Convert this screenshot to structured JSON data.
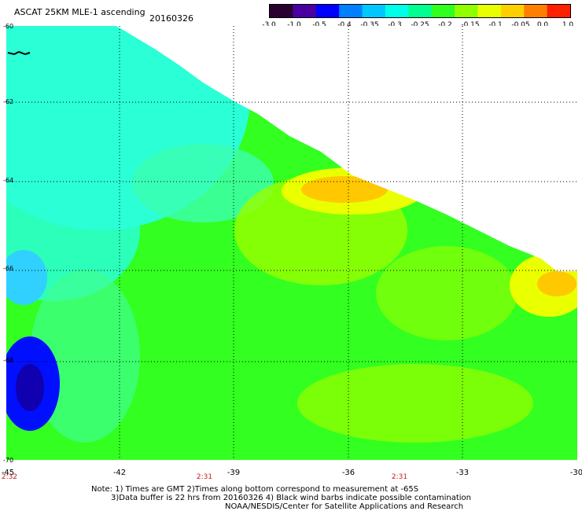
{
  "title": "ASCAT 25KM MLE-1 ascending",
  "date": "20160326",
  "colorbar": {
    "labels": [
      "-3.0",
      "-1.0",
      "-0.5",
      "-0.4",
      "-0.35",
      "-0.3",
      "-0.25",
      "-0.2",
      "-0.15",
      "-0.1",
      "-0.05",
      "0.0",
      "1.0"
    ],
    "colors": [
      "#2a0030",
      "#4a00a0",
      "#0000ff",
      "#0080ff",
      "#00c8ff",
      "#00ffe8",
      "#00ff90",
      "#30ff20",
      "#90ff00",
      "#e8ff00",
      "#ffd000",
      "#ff8000",
      "#ff2000"
    ]
  },
  "map": {
    "lat_labels": [
      "-60",
      "-62",
      "-64",
      "-66",
      "-68",
      "-70"
    ],
    "lon_labels": [
      "-45",
      "-42",
      "-39",
      "-36",
      "-33",
      "-30"
    ],
    "times": [
      "2:32",
      "2:31",
      "2:31"
    ],
    "land_color": "#ffffff",
    "field_colors": {
      "cyan": "#2affd6",
      "green": "#33ff20",
      "lime": "#9aff00",
      "yellow": "#eaff00",
      "orange": "#ffc800",
      "blue": "#0010ff",
      "darkblue": "#1000b0"
    }
  },
  "notes": [
    "Note: 1) Times are GMT 2)Times along bottom correspond to measurement at -65S",
    "3)Data buffer is 22 hrs from 20160326 4) Black wind barbs indicate possible contamination",
    "NOAA/NESDIS/Center for Satellite Applications and Research"
  ]
}
